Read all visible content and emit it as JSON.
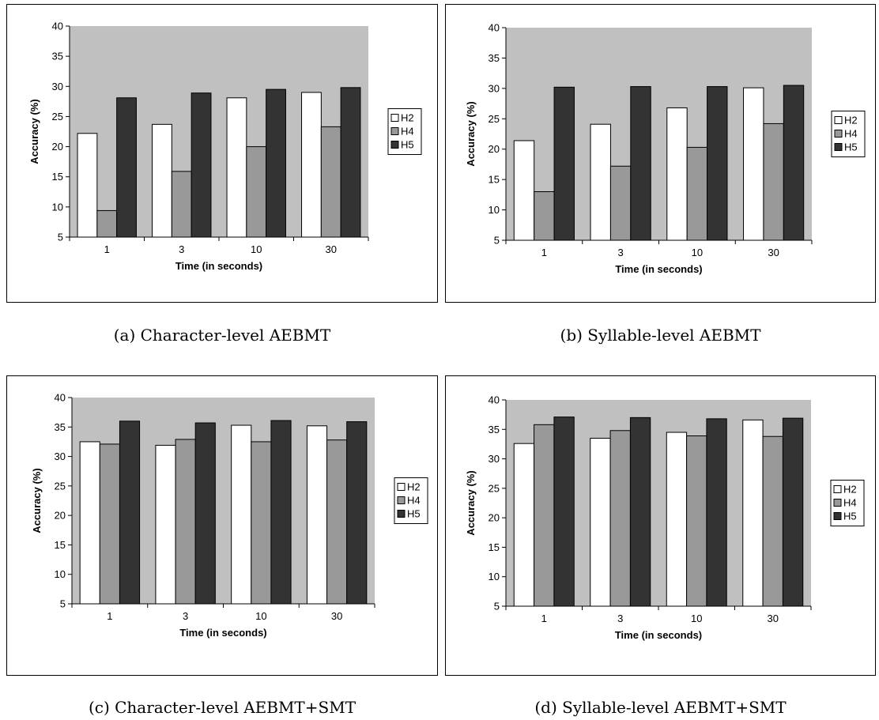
{
  "chart_data": [
    {
      "type": "bar",
      "caption": "(a) Character-level AEBMT",
      "categories": [
        "1",
        "3",
        "10",
        "30"
      ],
      "series": [
        {
          "name": "H2",
          "values": [
            22.2,
            23.7,
            28.1,
            29.0
          ]
        },
        {
          "name": "H4",
          "values": [
            9.4,
            15.9,
            20.0,
            23.3
          ]
        },
        {
          "name": "H5",
          "values": [
            28.1,
            28.9,
            29.5,
            29.8
          ]
        }
      ],
      "xlabel": "Time (in seconds)",
      "ylabel": "Accuracy (%)",
      "ylim": [
        5,
        40
      ],
      "yticks": [
        5,
        10,
        15,
        20,
        25,
        30,
        35,
        40
      ],
      "grid": false,
      "legend": "right"
    },
    {
      "type": "bar",
      "caption": "(b) Syllable-level AEBMT",
      "categories": [
        "1",
        "3",
        "10",
        "30"
      ],
      "series": [
        {
          "name": "H2",
          "values": [
            21.4,
            24.1,
            26.8,
            30.1
          ]
        },
        {
          "name": "H4",
          "values": [
            13.0,
            17.2,
            20.3,
            24.2
          ]
        },
        {
          "name": "H5",
          "values": [
            30.2,
            30.3,
            30.3,
            30.5
          ]
        }
      ],
      "xlabel": "Time (in seconds)",
      "ylabel": "Accuracy (%)",
      "ylim": [
        5,
        40
      ],
      "yticks": [
        5,
        10,
        15,
        20,
        25,
        30,
        35,
        40
      ],
      "grid": false,
      "legend": "right"
    },
    {
      "type": "bar",
      "caption": "(c) Character-level AEBMT+SMT",
      "categories": [
        "1",
        "3",
        "10",
        "30"
      ],
      "series": [
        {
          "name": "H2",
          "values": [
            32.5,
            31.9,
            35.3,
            35.2
          ]
        },
        {
          "name": "H4",
          "values": [
            32.1,
            32.9,
            32.5,
            32.8
          ]
        },
        {
          "name": "H5",
          "values": [
            36.0,
            35.7,
            36.1,
            35.9
          ]
        }
      ],
      "xlabel": "Time (in seconds)",
      "ylabel": "Accuracy (%)",
      "ylim": [
        5,
        40
      ],
      "yticks": [
        5,
        10,
        15,
        20,
        25,
        30,
        35,
        40
      ],
      "grid": false,
      "legend": "right"
    },
    {
      "type": "bar",
      "caption": "(d) Syllable-level AEBMT+SMT",
      "categories": [
        "1",
        "3",
        "10",
        "30"
      ],
      "series": [
        {
          "name": "H2",
          "values": [
            32.6,
            33.5,
            34.5,
            36.6
          ]
        },
        {
          "name": "H4",
          "values": [
            35.8,
            34.8,
            33.9,
            33.8
          ]
        },
        {
          "name": "H5",
          "values": [
            37.1,
            37.0,
            36.8,
            36.9
          ]
        }
      ],
      "xlabel": "Time (in seconds)",
      "ylabel": "Accuracy (%)",
      "ylim": [
        5,
        40
      ],
      "yticks": [
        5,
        10,
        15,
        20,
        25,
        30,
        35,
        40
      ],
      "grid": false,
      "legend": "right"
    }
  ],
  "colors": {
    "plot_bg": "#c0c0c0",
    "series": [
      "#ffffff",
      "#999999",
      "#333333"
    ]
  }
}
